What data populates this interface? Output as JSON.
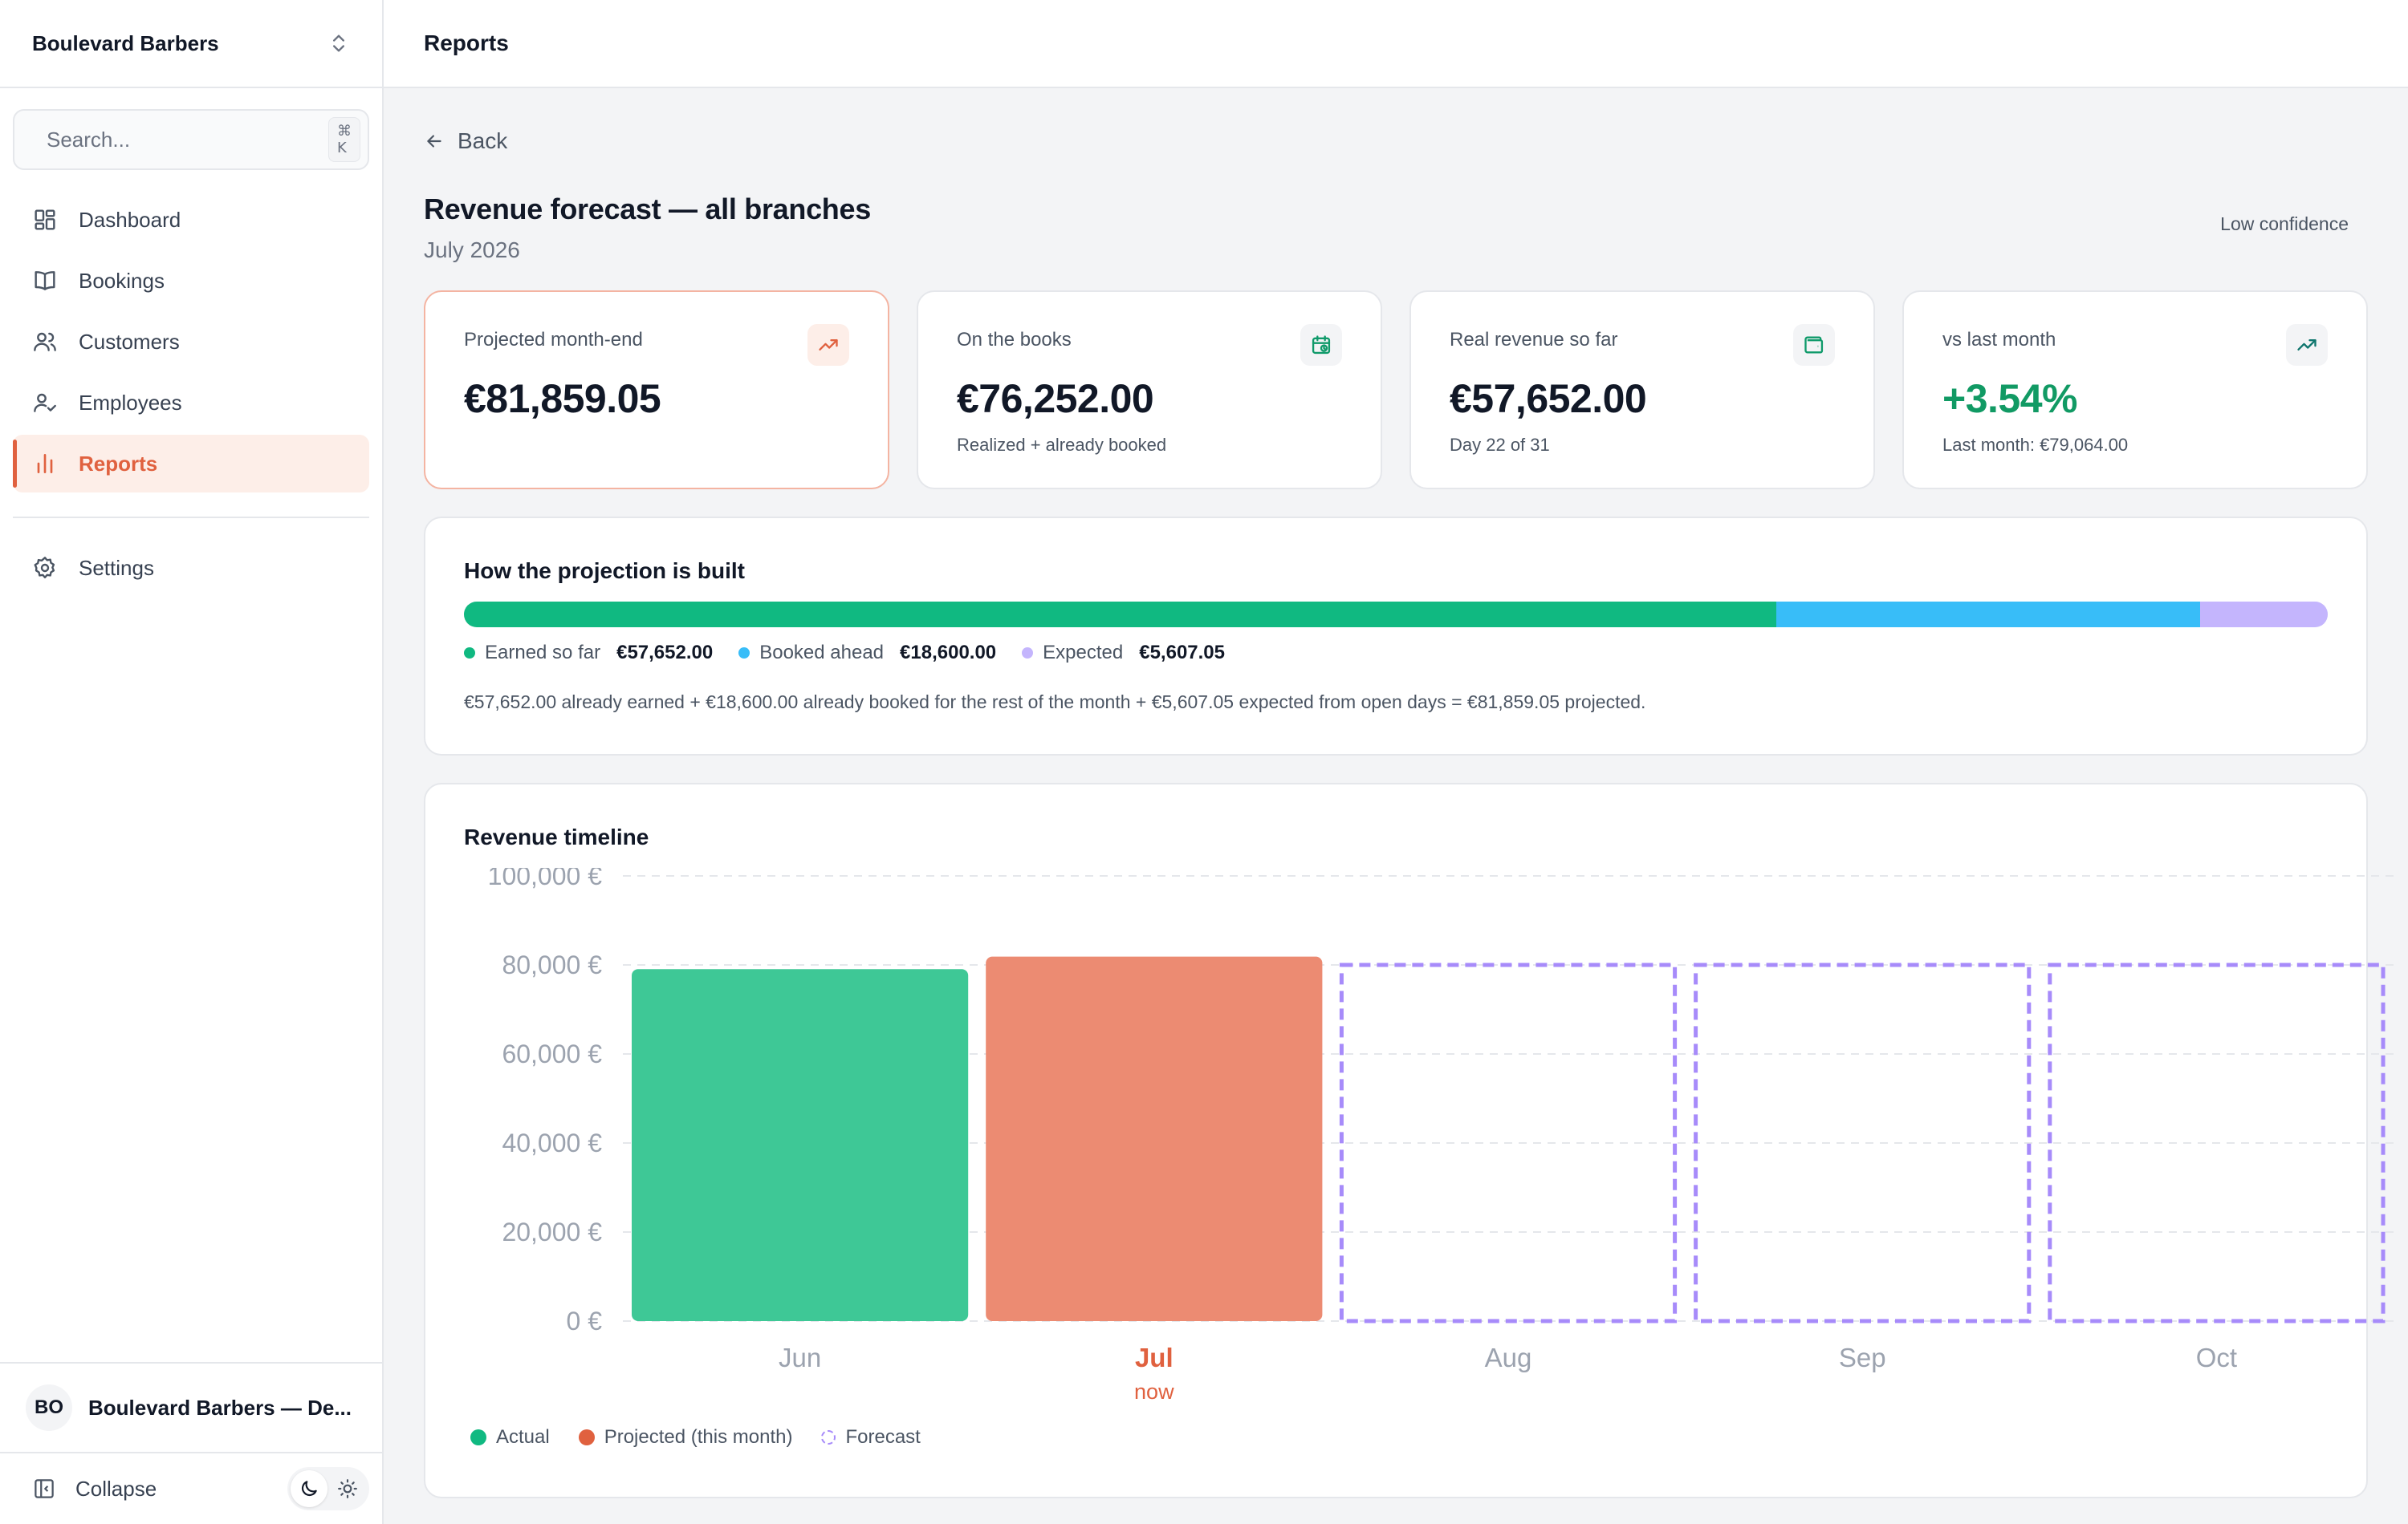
{
  "sidebar": {
    "org_name": "Boulevard Barbers",
    "search_placeholder": "Search...",
    "search_shortcut": "⌘ K",
    "items": [
      {
        "label": "Dashboard",
        "icon": "grid-icon"
      },
      {
        "label": "Bookings",
        "icon": "book-icon"
      },
      {
        "label": "Customers",
        "icon": "users-icon"
      },
      {
        "label": "Employees",
        "icon": "user-check-icon"
      },
      {
        "label": "Reports",
        "icon": "bar-chart-icon",
        "active": true
      }
    ],
    "settings_label": "Settings",
    "account_initials": "BO",
    "account_name": "Boulevard Barbers — De...",
    "collapse_label": "Collapse"
  },
  "header": {
    "title": "Reports"
  },
  "page": {
    "back_label": "Back",
    "title": "Revenue forecast — all branches",
    "subtitle": "July 2026",
    "confidence": "Low confidence"
  },
  "kpis": [
    {
      "label": "Projected month-end",
      "value": "€81,859.05",
      "note": "",
      "icon": "trending-up-icon"
    },
    {
      "label": "On the books",
      "value": "€76,252.00",
      "note": "Realized + already booked",
      "icon": "calendar-clock-icon"
    },
    {
      "label": "Real revenue so far",
      "value": "€57,652.00",
      "note": "Day 22 of 31",
      "icon": "wallet-icon"
    },
    {
      "label": "vs last month",
      "value": "+3.54%",
      "note": "Last month: €79,064.00",
      "icon": "trending-up-icon"
    }
  ],
  "breakdown": {
    "title": "How the projection is built",
    "segments": [
      {
        "label": "Earned so far",
        "value_text": "€57,652.00",
        "value": 57652.0,
        "color": "#10b981"
      },
      {
        "label": "Booked ahead",
        "value_text": "€18,600.00",
        "value": 18600.0,
        "color": "#38bdf8"
      },
      {
        "label": "Expected",
        "value_text": "€5,607.05",
        "value": 5607.05,
        "color": "#c4b5fd"
      }
    ],
    "explanation": "€57,652.00 already earned + €18,600.00 already booked for the rest of the month + €5,607.05 expected from open days = €81,859.05 projected."
  },
  "timeline": {
    "title": "Revenue timeline",
    "legend": [
      {
        "label": "Actual",
        "color": "#10b981",
        "style": "solid"
      },
      {
        "label": "Projected (this month)",
        "color": "#e0613f",
        "style": "solid"
      },
      {
        "label": "Forecast",
        "color": "#a78bfa",
        "style": "dashed"
      }
    ]
  },
  "chart_data": {
    "type": "bar",
    "title": "Revenue timeline",
    "categories": [
      "Jun",
      "Jul",
      "Aug",
      "Sep",
      "Oct"
    ],
    "category_sublabels": [
      "",
      "now",
      "",
      "",
      ""
    ],
    "highlight_category": "Jul",
    "series": [
      {
        "name": "Actual",
        "values": [
          79064,
          null,
          null,
          null,
          null
        ],
        "color": "#3ec896"
      },
      {
        "name": "Projected (this month)",
        "values": [
          null,
          81859.05,
          null,
          null,
          null
        ],
        "color": "#ec8b72"
      },
      {
        "name": "Forecast",
        "values": [
          null,
          null,
          80000,
          80000,
          80000
        ],
        "color": "#a78bfa",
        "style": "dashed-outline"
      }
    ],
    "yticks": [
      "0 €",
      "20,000 €",
      "40,000 €",
      "60,000 €",
      "80,000 €",
      "100,000 €"
    ],
    "ylim": [
      0,
      100000
    ],
    "grid": true,
    "legend_position": "bottom-left"
  }
}
